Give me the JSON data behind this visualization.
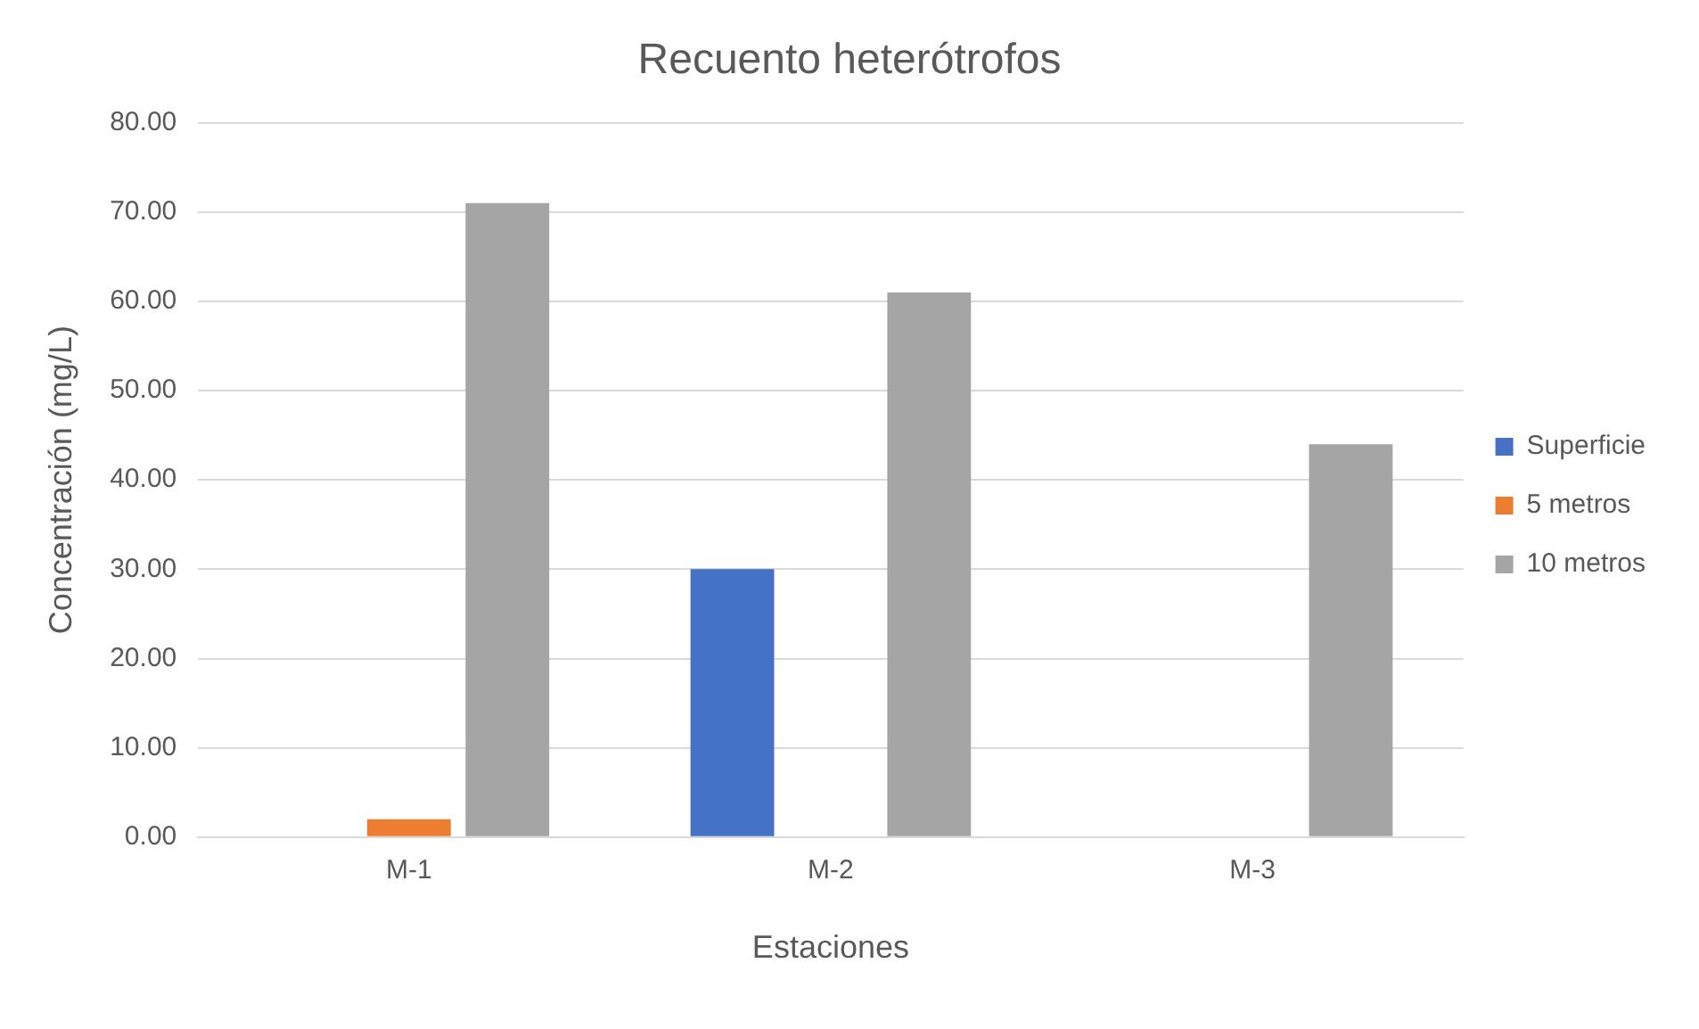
{
  "chart_data": {
    "type": "bar",
    "title": "Recuento heterótrofos",
    "xlabel": "Estaciones",
    "ylabel": "Concentración (mg/L)",
    "categories": [
      "M-1",
      "M-2",
      "M-3"
    ],
    "series": [
      {
        "name": "Superficie",
        "color": "#4472c4",
        "values": [
          null,
          30,
          null
        ]
      },
      {
        "name": "5 metros",
        "color": "#ed7d31",
        "values": [
          2,
          null,
          null
        ]
      },
      {
        "name": "10 metros",
        "color": "#a5a5a5",
        "values": [
          71,
          61,
          44
        ]
      }
    ],
    "ylim": [
      0,
      80
    ],
    "yticks": [
      {
        "value": 0,
        "label": "0.00"
      },
      {
        "value": 10,
        "label": "10.00"
      },
      {
        "value": 20,
        "label": "20.00"
      },
      {
        "value": 30,
        "label": "30.00"
      },
      {
        "value": 40,
        "label": "40.00"
      },
      {
        "value": 50,
        "label": "50.00"
      },
      {
        "value": 60,
        "label": "60.00"
      },
      {
        "value": 70,
        "label": "70.00"
      },
      {
        "value": 80,
        "label": "80.00"
      }
    ],
    "grid": "y",
    "legend": "right"
  }
}
